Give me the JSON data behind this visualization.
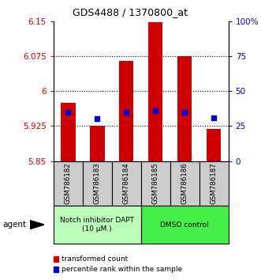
{
  "title": "GDS4488 / 1370800_at",
  "samples": [
    "GSM786182",
    "GSM786183",
    "GSM786184",
    "GSM786185",
    "GSM786186",
    "GSM786187"
  ],
  "bar_bottoms": [
    5.85,
    5.85,
    5.85,
    5.85,
    5.85,
    5.85
  ],
  "bar_tops": [
    5.975,
    5.925,
    6.065,
    6.148,
    6.075,
    5.918
  ],
  "blue_dots": [
    5.955,
    5.94,
    5.955,
    5.958,
    5.955,
    5.943
  ],
  "ylim": [
    5.85,
    6.15
  ],
  "y_ticks": [
    5.85,
    5.925,
    6.0,
    6.075,
    6.15
  ],
  "y_tick_labels": [
    "5.85",
    "5.925",
    "6",
    "6.075",
    "6.15"
  ],
  "right_ticks": [
    0,
    25,
    50,
    75,
    100
  ],
  "right_tick_labels": [
    "0",
    "25",
    "50",
    "75",
    "100%"
  ],
  "right_ylim": [
    0,
    100
  ],
  "dotted_lines": [
    5.925,
    6.0,
    6.075
  ],
  "bar_color": "#cc0000",
  "dot_color": "#0000cc",
  "groups": [
    {
      "label": "Notch inhibitor DAPT\n(10 μM.)",
      "samples": [
        0,
        1,
        2
      ],
      "color": "#bbffbb"
    },
    {
      "label": "DMSO control",
      "samples": [
        3,
        4,
        5
      ],
      "color": "#44ee44"
    }
  ],
  "agent_label": "agent",
  "legend_items": [
    {
      "label": "transformed count",
      "color": "#cc0000"
    },
    {
      "label": "percentile rank within the sample",
      "color": "#0000cc"
    }
  ],
  "tick_color_left": "#cc0000",
  "tick_color_right": "#0000cc",
  "bg_color": "#ffffff",
  "plot_bg": "#ffffff",
  "bar_width": 0.5,
  "sample_box_color": "#cccccc"
}
